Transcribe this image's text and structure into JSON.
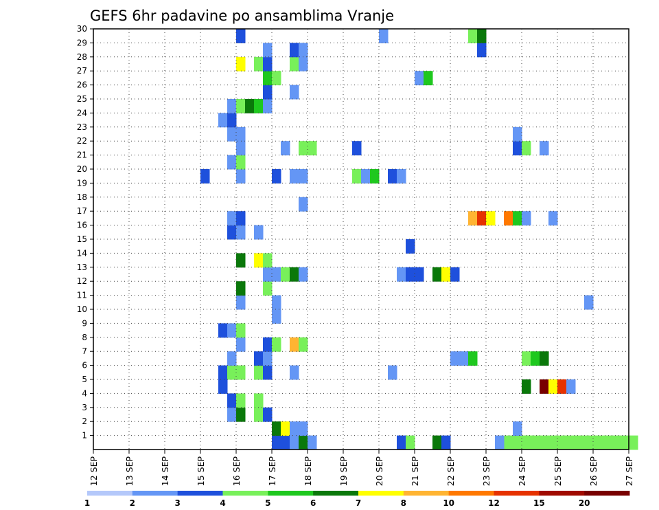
{
  "chart_data": {
    "type": "heatmap",
    "title": "GEFS 6hr padavine po ansamblima Vranje",
    "xlabel": "",
    "ylabel": "",
    "x_tick_labels": [
      "12 SEP",
      "13 SEP",
      "14 SEP",
      "15 SEP",
      "16 SEP",
      "17 SEP",
      "18 SEP",
      "19 SEP",
      "20 SEP",
      "21 SEP",
      "22 SEP",
      "23 SEP",
      "24 SEP",
      "25 SEP",
      "26 SEP",
      "27 SEP"
    ],
    "y_tick_labels": [
      "1",
      "2",
      "3",
      "4",
      "5",
      "6",
      "7",
      "8",
      "9",
      "10",
      "11",
      "12",
      "13",
      "14",
      "15",
      "16",
      "17",
      "18",
      "19",
      "20",
      "21",
      "22",
      "23",
      "24",
      "25",
      "26",
      "27",
      "28",
      "29",
      "30"
    ],
    "xlim_days": [
      0,
      15
    ],
    "time_step_hours": 6,
    "ylim": [
      0,
      30
    ],
    "grid": true,
    "colorbar": {
      "levels": [
        1,
        2,
        3,
        4,
        5,
        6,
        7,
        8,
        10,
        12,
        15,
        20
      ],
      "labels": [
        "1",
        "2",
        "3",
        "4",
        "5",
        "6",
        "7",
        "8",
        "10",
        "12",
        "15",
        "20"
      ],
      "colors": [
        "#b4c8fa",
        "#6496f5",
        "#1e50dc",
        "#78f05a",
        "#1ec81e",
        "#0a780a",
        "#ffff00",
        "#ffb432",
        "#ff7800",
        "#e63200",
        "#a00a00",
        "#780000"
      ],
      "placement": "bottom"
    },
    "cells": [
      {
        "member": 0,
        "step": 46,
        "level": 3
      },
      {
        "member": 0,
        "step": 47,
        "level": 3
      },
      {
        "member": 0,
        "step": 48,
        "level": 3
      },
      {
        "member": 0,
        "step": 49,
        "level": 3
      },
      {
        "member": 0,
        "step": 50,
        "level": 3
      },
      {
        "member": 0,
        "step": 51,
        "level": 3
      },
      {
        "member": 0,
        "step": 52,
        "level": 3
      },
      {
        "member": 0,
        "step": 53,
        "level": 3
      },
      {
        "member": 0,
        "step": 54,
        "level": 3
      },
      {
        "member": 0,
        "step": 55,
        "level": 3
      },
      {
        "member": 0,
        "step": 56,
        "level": 3
      },
      {
        "member": 0,
        "step": 57,
        "level": 3
      },
      {
        "member": 0,
        "step": 58,
        "level": 3
      },
      {
        "member": 0,
        "step": 59,
        "level": 3
      },
      {
        "member": 0,
        "step": 60,
        "level": 3
      },
      {
        "member": 0,
        "step": 20,
        "level": 2
      },
      {
        "member": 0,
        "step": 21,
        "level": 2
      },
      {
        "member": 0,
        "step": 22,
        "level": 1
      },
      {
        "member": 0,
        "step": 23,
        "level": 5
      },
      {
        "member": 0,
        "step": 24,
        "level": 1
      },
      {
        "member": 0,
        "step": 34,
        "level": 2
      },
      {
        "member": 0,
        "step": 35,
        "level": 3
      },
      {
        "member": 0,
        "step": 38,
        "level": 5
      },
      {
        "member": 0,
        "step": 39,
        "level": 2
      },
      {
        "member": 0,
        "step": 45,
        "level": 1
      },
      {
        "member": 0,
        "step": 48,
        "level": 3
      },
      {
        "member": 1,
        "step": 20,
        "level": 5
      },
      {
        "member": 1,
        "step": 21,
        "level": 6
      },
      {
        "member": 1,
        "step": 22,
        "level": 1
      },
      {
        "member": 1,
        "step": 23,
        "level": 1
      },
      {
        "member": 1,
        "step": 47,
        "level": 1
      },
      {
        "member": 2,
        "step": 15,
        "level": 1
      },
      {
        "member": 2,
        "step": 16,
        "level": 5
      },
      {
        "member": 2,
        "step": 18,
        "level": 3
      },
      {
        "member": 2,
        "step": 19,
        "level": 2
      },
      {
        "member": 3,
        "step": 15,
        "level": 2
      },
      {
        "member": 3,
        "step": 16,
        "level": 3
      },
      {
        "member": 3,
        "step": 18,
        "level": 3
      },
      {
        "member": 4,
        "step": 14,
        "level": 2
      },
      {
        "member": 4,
        "step": 48,
        "level": 5
      },
      {
        "member": 4,
        "step": 50,
        "level": 11
      },
      {
        "member": 4,
        "step": 51,
        "level": 6
      },
      {
        "member": 4,
        "step": 52,
        "level": 9
      },
      {
        "member": 4,
        "step": 53,
        "level": 1
      },
      {
        "member": 5,
        "step": 14,
        "level": 2
      },
      {
        "member": 5,
        "step": 15,
        "level": 3
      },
      {
        "member": 5,
        "step": 16,
        "level": 3
      },
      {
        "member": 5,
        "step": 18,
        "level": 3
      },
      {
        "member": 5,
        "step": 19,
        "level": 2
      },
      {
        "member": 5,
        "step": 22,
        "level": 1
      },
      {
        "member": 5,
        "step": 33,
        "level": 1
      },
      {
        "member": 6,
        "step": 15,
        "level": 1
      },
      {
        "member": 6,
        "step": 18,
        "level": 2
      },
      {
        "member": 6,
        "step": 19,
        "level": 1
      },
      {
        "member": 6,
        "step": 40,
        "level": 1
      },
      {
        "member": 6,
        "step": 41,
        "level": 1
      },
      {
        "member": 6,
        "step": 42,
        "level": 4
      },
      {
        "member": 6,
        "step": 48,
        "level": 3
      },
      {
        "member": 6,
        "step": 49,
        "level": 4
      },
      {
        "member": 6,
        "step": 50,
        "level": 5
      },
      {
        "member": 7,
        "step": 16,
        "level": 1
      },
      {
        "member": 7,
        "step": 19,
        "level": 2
      },
      {
        "member": 7,
        "step": 20,
        "level": 3
      },
      {
        "member": 7,
        "step": 22,
        "level": 7
      },
      {
        "member": 7,
        "step": 23,
        "level": 3
      },
      {
        "member": 8,
        "step": 14,
        "level": 2
      },
      {
        "member": 8,
        "step": 15,
        "level": 1
      },
      {
        "member": 8,
        "step": 16,
        "level": 3
      },
      {
        "member": 9,
        "step": 20,
        "level": 1
      },
      {
        "member": 10,
        "step": 16,
        "level": 1
      },
      {
        "member": 10,
        "step": 20,
        "level": 1
      },
      {
        "member": 10,
        "step": 55,
        "level": 1
      },
      {
        "member": 11,
        "step": 16,
        "level": 5
      },
      {
        "member": 11,
        "step": 19,
        "level": 3
      },
      {
        "member": 12,
        "step": 19,
        "level": 1
      },
      {
        "member": 12,
        "step": 20,
        "level": 1
      },
      {
        "member": 12,
        "step": 21,
        "level": 3
      },
      {
        "member": 12,
        "step": 22,
        "level": 5
      },
      {
        "member": 12,
        "step": 23,
        "level": 1
      },
      {
        "member": 12,
        "step": 34,
        "level": 1
      },
      {
        "member": 12,
        "step": 35,
        "level": 2
      },
      {
        "member": 12,
        "step": 36,
        "level": 2
      },
      {
        "member": 12,
        "step": 38,
        "level": 5
      },
      {
        "member": 12,
        "step": 39,
        "level": 6
      },
      {
        "member": 12,
        "step": 40,
        "level": 2
      },
      {
        "member": 13,
        "step": 16,
        "level": 5
      },
      {
        "member": 13,
        "step": 18,
        "level": 6
      },
      {
        "member": 13,
        "step": 19,
        "level": 3
      },
      {
        "member": 14,
        "step": 35,
        "level": 2
      },
      {
        "member": 15,
        "step": 15,
        "level": 2
      },
      {
        "member": 15,
        "step": 16,
        "level": 1
      },
      {
        "member": 15,
        "step": 18,
        "level": 1
      },
      {
        "member": 16,
        "step": 15,
        "level": 1
      },
      {
        "member": 16,
        "step": 16,
        "level": 2
      },
      {
        "member": 16,
        "step": 42,
        "level": 7
      },
      {
        "member": 16,
        "step": 43,
        "level": 9
      },
      {
        "member": 16,
        "step": 44,
        "level": 6
      },
      {
        "member": 16,
        "step": 46,
        "level": 8
      },
      {
        "member": 16,
        "step": 47,
        "level": 4
      },
      {
        "member": 16,
        "step": 48,
        "level": 1
      },
      {
        "member": 16,
        "step": 51,
        "level": 1
      },
      {
        "member": 17,
        "step": 23,
        "level": 1
      },
      {
        "member": 19,
        "step": 12,
        "level": 2
      },
      {
        "member": 19,
        "step": 16,
        "level": 1
      },
      {
        "member": 19,
        "step": 20,
        "level": 2
      },
      {
        "member": 19,
        "step": 22,
        "level": 1
      },
      {
        "member": 19,
        "step": 23,
        "level": 1
      },
      {
        "member": 19,
        "step": 29,
        "level": 3
      },
      {
        "member": 19,
        "step": 30,
        "level": 1
      },
      {
        "member": 19,
        "step": 31,
        "level": 4
      },
      {
        "member": 19,
        "step": 33,
        "level": 2
      },
      {
        "member": 19,
        "step": 34,
        "level": 1
      },
      {
        "member": 20,
        "step": 15,
        "level": 1
      },
      {
        "member": 20,
        "step": 16,
        "level": 3
      },
      {
        "member": 21,
        "step": 16,
        "level": 1
      },
      {
        "member": 21,
        "step": 21,
        "level": 1
      },
      {
        "member": 21,
        "step": 23,
        "level": 3
      },
      {
        "member": 21,
        "step": 24,
        "level": 3
      },
      {
        "member": 21,
        "step": 29,
        "level": 2
      },
      {
        "member": 21,
        "step": 47,
        "level": 2
      },
      {
        "member": 21,
        "step": 48,
        "level": 3
      },
      {
        "member": 21,
        "step": 50,
        "level": 1
      },
      {
        "member": 22,
        "step": 15,
        "level": 1
      },
      {
        "member": 22,
        "step": 16,
        "level": 1
      },
      {
        "member": 22,
        "step": 47,
        "level": 1
      },
      {
        "member": 23,
        "step": 14,
        "level": 1
      },
      {
        "member": 23,
        "step": 15,
        "level": 2
      },
      {
        "member": 24,
        "step": 15,
        "level": 1
      },
      {
        "member": 24,
        "step": 16,
        "level": 3
      },
      {
        "member": 24,
        "step": 17,
        "level": 5
      },
      {
        "member": 24,
        "step": 18,
        "level": 4
      },
      {
        "member": 24,
        "step": 19,
        "level": 1
      },
      {
        "member": 25,
        "step": 19,
        "level": 2
      },
      {
        "member": 25,
        "step": 22,
        "level": 1
      },
      {
        "member": 26,
        "step": 19,
        "level": 4
      },
      {
        "member": 26,
        "step": 20,
        "level": 3
      },
      {
        "member": 26,
        "step": 36,
        "level": 1
      },
      {
        "member": 26,
        "step": 37,
        "level": 4
      },
      {
        "member": 27,
        "step": 16,
        "level": 6
      },
      {
        "member": 27,
        "step": 18,
        "level": 3
      },
      {
        "member": 27,
        "step": 19,
        "level": 2
      },
      {
        "member": 27,
        "step": 22,
        "level": 3
      },
      {
        "member": 27,
        "step": 23,
        "level": 1
      },
      {
        "member": 28,
        "step": 19,
        "level": 1
      },
      {
        "member": 28,
        "step": 22,
        "level": 2
      },
      {
        "member": 28,
        "step": 23,
        "level": 1
      },
      {
        "member": 28,
        "step": 43,
        "level": 2
      },
      {
        "member": 29,
        "step": 16,
        "level": 2
      },
      {
        "member": 29,
        "step": 32,
        "level": 1
      },
      {
        "member": 29,
        "step": 42,
        "level": 3
      },
      {
        "member": 29,
        "step": 43,
        "level": 5
      }
    ]
  }
}
